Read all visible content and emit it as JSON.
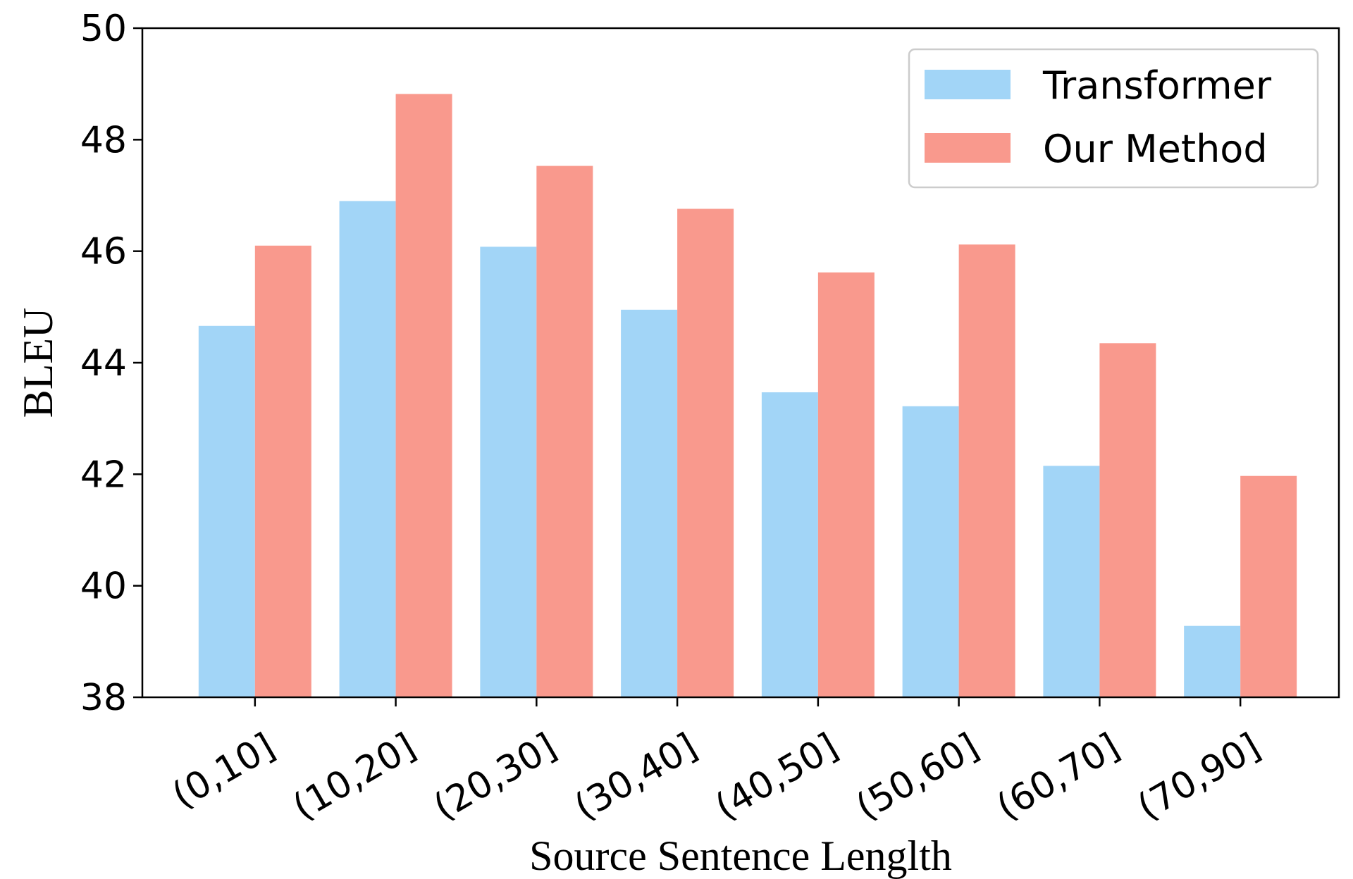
{
  "chart_data": {
    "type": "bar",
    "categories": [
      "(0,10]",
      "(10,20]",
      "(20,30]",
      "(30,40]",
      "(40,50]",
      "(50,60]",
      "(60,70]",
      "(70,90]"
    ],
    "series": [
      {
        "name": "Transformer",
        "color": "#a2d5f7",
        "values": [
          44.66,
          46.9,
          46.08,
          44.95,
          43.47,
          43.22,
          42.15,
          39.28
        ]
      },
      {
        "name": "Our Method",
        "color": "#f9998d",
        "values": [
          46.1,
          48.82,
          47.53,
          46.76,
          45.62,
          46.12,
          44.35,
          41.97
        ]
      }
    ],
    "xlabel": "Source Sentence Lenglth",
    "ylabel": "BLEU",
    "ylim": [
      38,
      50
    ],
    "yticks": [
      "38",
      "40",
      "42",
      "44",
      "46",
      "48",
      "50"
    ],
    "grid": false,
    "legend_position": "top-right"
  }
}
